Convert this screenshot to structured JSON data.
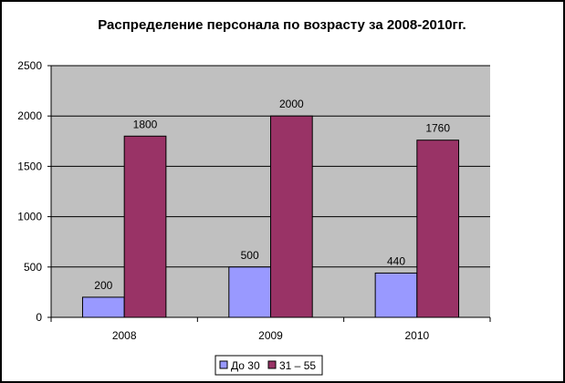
{
  "chart_data": {
    "type": "bar",
    "title": "Распределение персонала по возрасту за 2008-2010гг.",
    "categories": [
      "2008",
      "2009",
      "2010"
    ],
    "series": [
      {
        "name": "До 30",
        "values": [
          200,
          500,
          440
        ],
        "color": "#9999ff"
      },
      {
        "name": "31 – 55",
        "values": [
          1800,
          2000,
          1760
        ],
        "color": "#993366"
      }
    ],
    "ylim": [
      0,
      2500
    ],
    "yticks": [
      "0",
      "500",
      "1000",
      "1500",
      "2000",
      "2500"
    ],
    "grid": true,
    "legend_position": "bottom",
    "plot_background": "#c0c0c0"
  }
}
